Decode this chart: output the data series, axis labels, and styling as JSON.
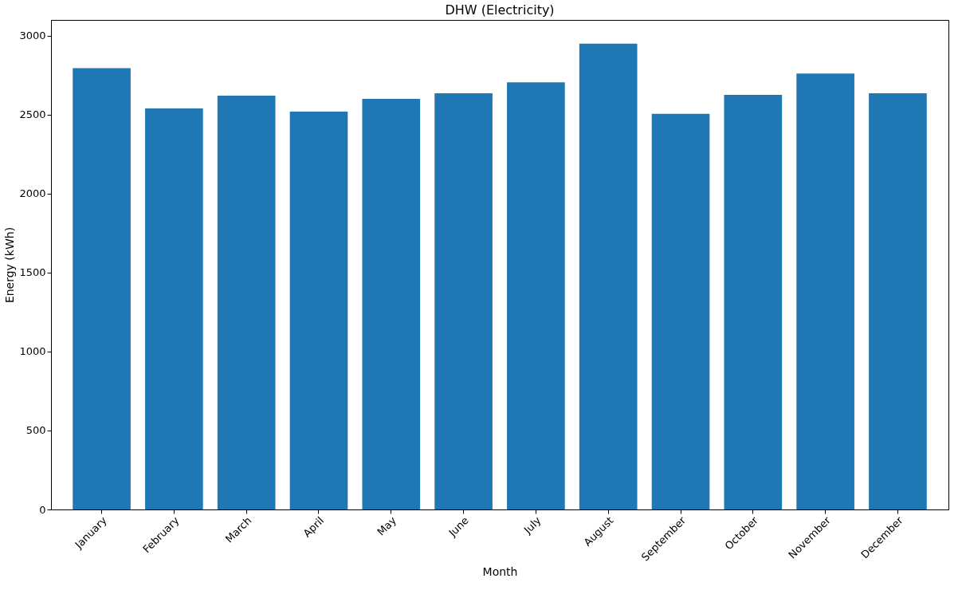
{
  "chart_data": {
    "type": "bar",
    "title": "DHW (Electricity)",
    "xlabel": "Month",
    "ylabel": "Energy (kWh)",
    "categories": [
      "January",
      "February",
      "March",
      "April",
      "May",
      "June",
      "July",
      "August",
      "September",
      "October",
      "November",
      "December"
    ],
    "values": [
      2795,
      2540,
      2620,
      2520,
      2600,
      2635,
      2705,
      2950,
      2505,
      2625,
      2760,
      2635
    ],
    "color": "#1f77b4",
    "ylim": [
      0,
      3100
    ],
    "yticks": [
      0,
      500,
      1000,
      1500,
      2000,
      2500,
      3000
    ],
    "grid": false
  }
}
